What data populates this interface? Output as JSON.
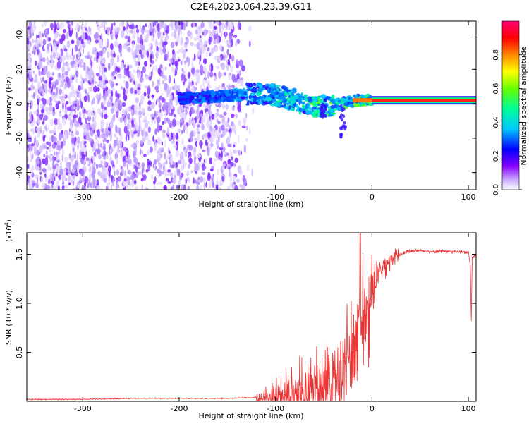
{
  "title": "C2E4.2023.064.23.39.G11",
  "chart_data": [
    {
      "type": "heatmap",
      "xlabel": "Height of straight line (km)",
      "ylabel": "Frequency (Hz)",
      "xlim": [
        -358,
        108
      ],
      "ylim": [
        -50,
        48
      ],
      "x_ticks": [
        -300,
        -200,
        -100,
        0,
        100
      ],
      "y_ticks": [
        -40,
        -20,
        0,
        20,
        40
      ],
      "colorbar": {
        "label": "Normalized spectral amplitude",
        "range": [
          0,
          1
        ],
        "ticks": [
          0.0,
          0.2,
          0.4,
          0.6,
          0.8
        ],
        "colors": [
          "#ffffff",
          "#8800ff",
          "#0000ff",
          "#00c8ff",
          "#00ff7f",
          "#aaff00",
          "#ffff00",
          "#ff8800",
          "#ff0000",
          "#ff0077"
        ]
      },
      "features": {
        "noise_region_x": [
          -358,
          -130
        ],
        "signal_track": [
          {
            "x": -200,
            "y": 3
          },
          {
            "x": -160,
            "y": 4
          },
          {
            "x": -120,
            "y": 6
          },
          {
            "x": -100,
            "y": 5
          },
          {
            "x": -80,
            "y": 2
          },
          {
            "x": -60,
            "y": -2
          },
          {
            "x": -45,
            "y": -1
          },
          {
            "x": -30,
            "y": 0
          },
          {
            "x": -15,
            "y": 2
          },
          {
            "x": 0,
            "y": 2
          },
          {
            "x": 108,
            "y": 2
          }
        ]
      }
    },
    {
      "type": "line",
      "xlabel": "Height of straight line (km)",
      "ylabel": "SNR (10 * v/v)",
      "y_multiplier": "(x10",
      "y_multiplier_exp": "4",
      "y_multiplier_close": ")",
      "xlim": [
        -358,
        108
      ],
      "ylim": [
        0,
        1.72
      ],
      "x_ticks": [
        -300,
        -200,
        -100,
        0,
        100
      ],
      "y_ticks": [
        0.5,
        1.0,
        1.5
      ],
      "y_tick_labels": [
        "0.5",
        "1.0",
        "1.5"
      ],
      "series": [
        {
          "color": "#ee3333",
          "x": [
            -358,
            -300,
            -250,
            -200,
            -150,
            -120,
            -110,
            -100,
            -90,
            -80,
            -70,
            -60,
            -50,
            -45,
            -40,
            -35,
            -30,
            -25,
            -20,
            -15,
            -12,
            -10,
            -5,
            0,
            5,
            10,
            20,
            30,
            40,
            50,
            60,
            80,
            100,
            102,
            103,
            104,
            108
          ],
          "y": [
            0.02,
            0.02,
            0.03,
            0.03,
            0.03,
            0.04,
            0.06,
            0.09,
            0.13,
            0.17,
            0.2,
            0.24,
            0.3,
            0.33,
            0.37,
            0.4,
            0.46,
            0.6,
            0.72,
            0.85,
            0.95,
            1.0,
            1.05,
            1.12,
            1.25,
            1.36,
            1.46,
            1.51,
            1.53,
            1.54,
            1.53,
            1.53,
            1.52,
            1.4,
            0.82,
            1.47,
            1.48
          ]
        }
      ]
    }
  ]
}
